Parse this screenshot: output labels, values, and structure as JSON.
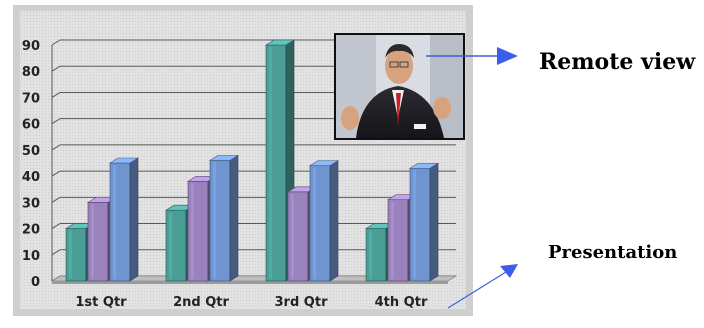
{
  "chart_data": {
    "type": "bar",
    "style": "3d",
    "categories": [
      "1st Qtr",
      "2nd Qtr",
      "3rd Qtr",
      "4th Qtr"
    ],
    "series": [
      {
        "values": [
          20,
          27,
          90,
          20
        ],
        "color": "#4a9e96"
      },
      {
        "values": [
          30,
          38,
          34,
          31
        ],
        "color": "#9a82bd"
      },
      {
        "values": [
          45,
          46,
          44,
          43
        ],
        "color": "#6f94cf"
      }
    ],
    "yticks": [
      0,
      10,
      20,
      30,
      40,
      50,
      60,
      70,
      80,
      90
    ],
    "ylim": [
      0,
      90
    ],
    "grid": true,
    "legend": false
  },
  "annotations": {
    "remote_view_label": "Remote view",
    "presentation_label": "Presentation"
  },
  "colors": {
    "frame": "#cfcfcf",
    "plot_background": "#e4e4e4",
    "arrow": "#3b5fe6"
  },
  "inset_image": {
    "description_icon": "video-feed-person-icon"
  }
}
